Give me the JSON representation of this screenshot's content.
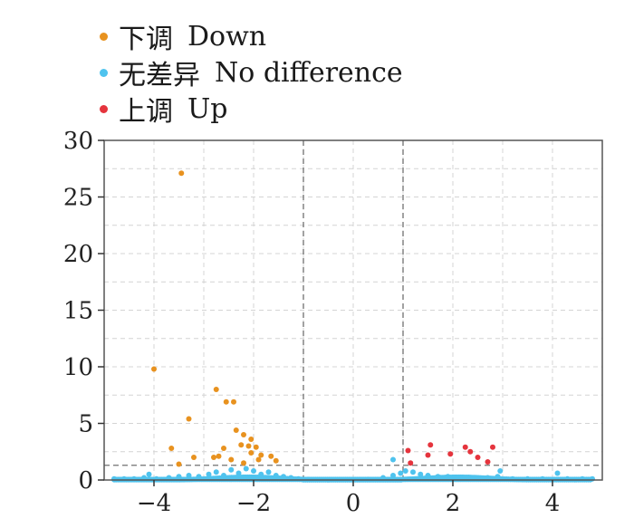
{
  "legend": [
    {
      "label_cn": "下调",
      "label_en": "Down",
      "color": "#E8921F"
    },
    {
      "label_cn": "无差异",
      "label_en": "No difference",
      "color": "#4FC3EE"
    },
    {
      "label_cn": "上调",
      "label_en": "Up",
      "color": "#E5343D"
    }
  ],
  "chart_data": {
    "type": "scatter",
    "title": "",
    "xlabel": "",
    "ylabel": "",
    "xlim": [
      -5,
      5
    ],
    "ylim": [
      0,
      30
    ],
    "x_ticks": [
      -4,
      -2,
      0,
      2,
      4
    ],
    "y_ticks": [
      0,
      5,
      10,
      15,
      20,
      25,
      30
    ],
    "threshold_lines": {
      "x": [
        -1,
        1
      ],
      "y": [
        1.3
      ]
    },
    "grid": true,
    "legend_position": "top-left",
    "series": [
      {
        "name": "下调 Down",
        "color": "#E8921F",
        "points": [
          [
            -3.45,
            27.1
          ],
          [
            -4.0,
            9.8
          ],
          [
            -2.75,
            8.0
          ],
          [
            -2.55,
            6.9
          ],
          [
            -2.4,
            6.9
          ],
          [
            -3.3,
            5.4
          ],
          [
            -2.35,
            4.4
          ],
          [
            -2.2,
            4.0
          ],
          [
            -2.05,
            3.6
          ],
          [
            -2.25,
            3.1
          ],
          [
            -2.1,
            3.0
          ],
          [
            -1.95,
            2.9
          ],
          [
            -2.6,
            2.8
          ],
          [
            -3.65,
            2.8
          ],
          [
            -2.05,
            2.4
          ],
          [
            -1.85,
            2.2
          ],
          [
            -1.65,
            2.1
          ],
          [
            -2.7,
            2.1
          ],
          [
            -2.8,
            2.0
          ],
          [
            -3.2,
            2.0
          ],
          [
            -2.45,
            1.8
          ],
          [
            -1.9,
            1.8
          ],
          [
            -1.55,
            1.7
          ],
          [
            -2.2,
            1.5
          ],
          [
            -3.5,
            1.4
          ]
        ]
      },
      {
        "name": "无差异 No difference",
        "color": "#4FC3EE",
        "points": [
          [
            -4.8,
            0.1
          ],
          [
            -4.6,
            0.1
          ],
          [
            -4.4,
            0.1
          ],
          [
            -4.2,
            0.2
          ],
          [
            -4.1,
            0.5
          ],
          [
            -3.95,
            0.1
          ],
          [
            -3.7,
            0.2
          ],
          [
            -3.5,
            0.3
          ],
          [
            -3.3,
            0.4
          ],
          [
            -3.1,
            0.3
          ],
          [
            -2.9,
            0.5
          ],
          [
            -2.75,
            0.7
          ],
          [
            -2.6,
            0.4
          ],
          [
            -2.45,
            0.9
          ],
          [
            -2.3,
            0.6
          ],
          [
            -2.15,
            1.0
          ],
          [
            -2.0,
            0.8
          ],
          [
            -1.85,
            0.5
          ],
          [
            -1.7,
            0.7
          ],
          [
            -1.55,
            0.4
          ],
          [
            -1.4,
            0.3
          ],
          [
            -1.25,
            0.2
          ],
          [
            -1.1,
            0.1
          ],
          [
            -0.9,
            0.05
          ],
          [
            -0.5,
            0.02
          ],
          [
            0.0,
            0.02
          ],
          [
            0.3,
            0.05
          ],
          [
            0.6,
            0.2
          ],
          [
            0.8,
            0.4
          ],
          [
            0.95,
            0.6
          ],
          [
            0.8,
            1.8
          ],
          [
            1.05,
            0.8
          ],
          [
            1.2,
            0.7
          ],
          [
            1.35,
            0.5
          ],
          [
            1.5,
            0.4
          ],
          [
            1.7,
            0.3
          ],
          [
            1.9,
            0.3
          ],
          [
            2.1,
            0.2
          ],
          [
            2.3,
            0.2
          ],
          [
            2.5,
            0.1
          ],
          [
            2.7,
            0.2
          ],
          [
            2.9,
            0.3
          ],
          [
            2.95,
            0.8
          ],
          [
            3.2,
            0.1
          ],
          [
            3.5,
            0.1
          ],
          [
            3.8,
            0.1
          ],
          [
            4.1,
            0.6
          ],
          [
            4.3,
            0.1
          ],
          [
            4.6,
            0.1
          ],
          [
            4.8,
            0.1
          ]
        ]
      },
      {
        "name": "上调 Up",
        "color": "#E5343D",
        "points": [
          [
            1.55,
            3.1
          ],
          [
            2.25,
            2.9
          ],
          [
            2.8,
            2.9
          ],
          [
            1.1,
            2.6
          ],
          [
            2.35,
            2.5
          ],
          [
            1.95,
            2.3
          ],
          [
            1.5,
            2.2
          ],
          [
            2.5,
            2.0
          ],
          [
            2.7,
            1.6
          ],
          [
            1.15,
            1.5
          ]
        ]
      }
    ]
  }
}
